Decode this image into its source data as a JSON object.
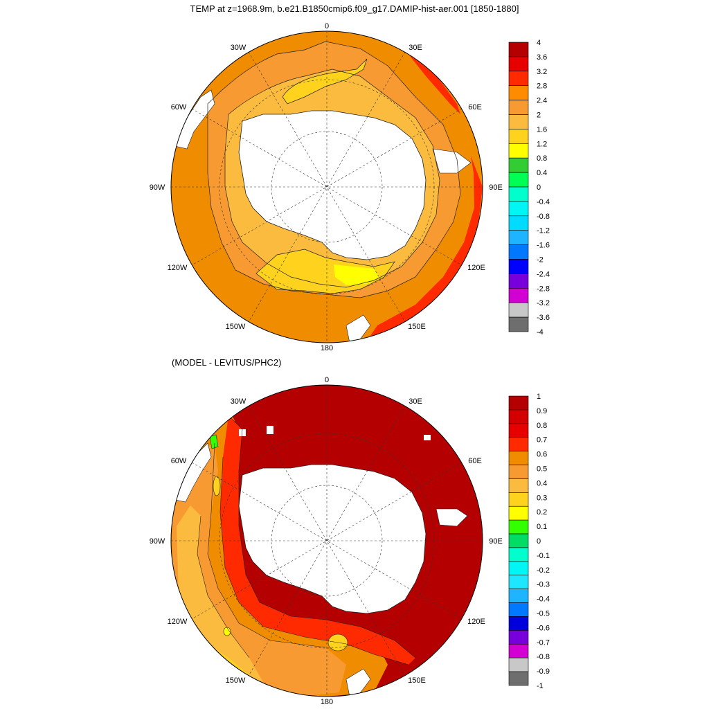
{
  "top_title": "TEMP at z=1968.9m, b.e21.B1850cmip6.f09_g17.DAMIP-hist-aer.001 [1850-1880]",
  "bottom_title": "(MODEL - LEVITUS/PHC2)",
  "longitude_labels": {
    "lon_0": "0",
    "lon_30e": "30E",
    "lon_60e": "60E",
    "lon_90e": "90E",
    "lon_120e": "120E",
    "lon_150e": "150E",
    "lon_180": "180",
    "lon_150w": "150W",
    "lon_120w": "120W",
    "lon_90w": "90W",
    "lon_60w": "60W",
    "lon_30w": "30W"
  },
  "top_colorbar": {
    "labels": [
      "4",
      "3.6",
      "3.2",
      "2.8",
      "2.4",
      "2",
      "1.6",
      "1.2",
      "0.8",
      "0.4",
      "0",
      "-0.4",
      "-0.8",
      "-1.2",
      "-1.6",
      "-2",
      "-2.4",
      "-2.8",
      "-3.2",
      "-3.6",
      "-4"
    ],
    "colors": [
      "#b40000",
      "#e60000",
      "#ff2a00",
      "#ff8c00",
      "#f79a32",
      "#fbbb3f",
      "#ffd21e",
      "#ffff00",
      "#32cd32",
      "#00ff55",
      "#00ffcc",
      "#00f5f5",
      "#00dcff",
      "#1eb4ff",
      "#0078ff",
      "#0000ff",
      "#7800dc",
      "#d200d2",
      "#c8c8c8",
      "#6e6e6e"
    ]
  },
  "bottom_colorbar": {
    "labels": [
      "1",
      "0.9",
      "0.8",
      "0.7",
      "0.6",
      "0.5",
      "0.4",
      "0.3",
      "0.2",
      "0.1",
      "0",
      "-0.1",
      "-0.2",
      "-0.3",
      "-0.4",
      "-0.5",
      "-0.6",
      "-0.7",
      "-0.8",
      "-0.9",
      "-1"
    ],
    "colors": [
      "#b40000",
      "#d20000",
      "#e60000",
      "#ff2a00",
      "#f08c00",
      "#f79a32",
      "#fbbb3f",
      "#ffd21e",
      "#ffff00",
      "#32ff00",
      "#00dc64",
      "#00ffcc",
      "#00f5f5",
      "#1ee6ff",
      "#1eb4ff",
      "#0078ff",
      "#0000dc",
      "#7800dc",
      "#d200d2",
      "#c8c8c8",
      "#6e6e6e"
    ]
  }
}
